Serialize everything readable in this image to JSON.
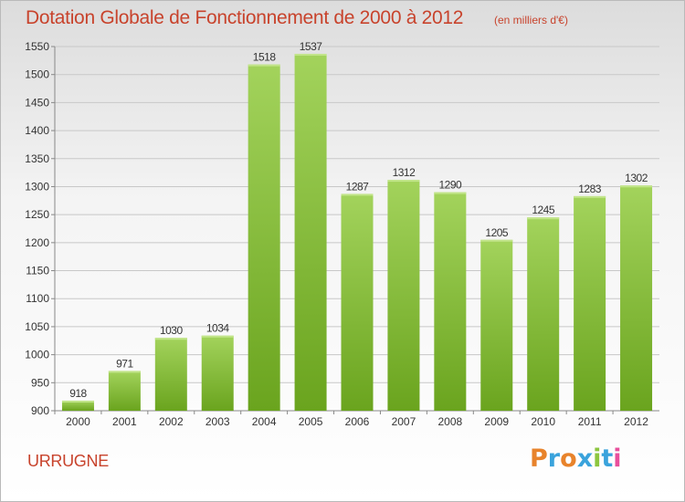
{
  "header": {
    "title": "Dotation Globale de Fonctionnement de 2000 à 2012",
    "unit": "(en milliers d'€)"
  },
  "footer": {
    "commune": "URRUGNE",
    "logo": "Proxiti"
  },
  "colors": {
    "title": "#c8432c",
    "bar_light": "#a3d35c",
    "bar_dark": "#6aa41e",
    "logo_letters": [
      "#e8832b",
      "#3aa3dc",
      "#e8832b",
      "#3aa3dc",
      "#8cc63f",
      "#3aa3dc",
      "#e84f9c"
    ]
  },
  "chart_data": {
    "type": "bar",
    "title": "Dotation Globale de Fonctionnement de 2000 à 2012",
    "subtitle": "(en milliers d'€)",
    "categories": [
      "2000",
      "2001",
      "2002",
      "2003",
      "2004",
      "2005",
      "2006",
      "2007",
      "2008",
      "2009",
      "2010",
      "2011",
      "2012"
    ],
    "values": [
      918,
      971,
      1030,
      1034,
      1518,
      1537,
      1287,
      1312,
      1290,
      1205,
      1245,
      1283,
      1302
    ],
    "xlabel": "",
    "ylabel": "",
    "ylim": [
      900,
      1550
    ],
    "yticks": [
      900,
      950,
      1000,
      1050,
      1100,
      1150,
      1200,
      1250,
      1300,
      1350,
      1400,
      1450,
      1500,
      1550
    ],
    "grid": true,
    "legend": "none"
  }
}
